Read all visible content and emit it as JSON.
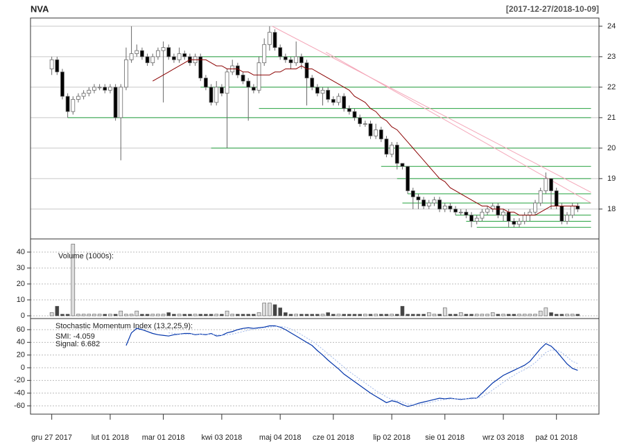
{
  "chart_data": [
    {
      "type": "candlestick",
      "title": "NVA",
      "subtitle": "[2017-12-27/2018-10-09]",
      "ylim": [
        17.02,
        24.27
      ],
      "yticks": [
        18,
        19,
        20,
        21,
        22,
        23,
        24
      ],
      "grid": true,
      "up_color": "#ffffff",
      "down_color": "#000000",
      "border_color": "#666666",
      "open": [
        22.6,
        22.9,
        22.5,
        21.7,
        21.2,
        21.6,
        21.7,
        21.8,
        21.9,
        22.0,
        22.0,
        21.9,
        22.0,
        21.0,
        22.0,
        22.9,
        23.1,
        23.2,
        23.0,
        22.8,
        23.0,
        23.2,
        23.3,
        23.0,
        22.9,
        23.1,
        23.0,
        22.8,
        23.0,
        22.3,
        22.0,
        21.5,
        22.0,
        21.8,
        22.5,
        22.7,
        22.4,
        22.2,
        22.0,
        21.9,
        22.8,
        23.4,
        23.8,
        23.3,
        23.0,
        22.9,
        22.8,
        23.0,
        22.8,
        22.3,
        22.0,
        21.8,
        21.9,
        21.6,
        21.5,
        21.7,
        21.3,
        21.2,
        21.0,
        20.8,
        20.8,
        20.4,
        20.6,
        20.3,
        19.8,
        20.1,
        19.5,
        19.4,
        18.6,
        18.4,
        18.3,
        18.1,
        18.2,
        18.3,
        18.0,
        18.1,
        18.0,
        17.9,
        17.9,
        17.8,
        17.6,
        17.7,
        17.9,
        18.0,
        18.1,
        17.8,
        17.9,
        17.6,
        17.5,
        17.6,
        17.8,
        17.9,
        18.2,
        18.6,
        19.0,
        18.6,
        18.1,
        17.6,
        17.8,
        18.1
      ],
      "high": [
        23.0,
        23.0,
        22.6,
        21.8,
        21.7,
        21.8,
        21.9,
        22.0,
        22.1,
        22.1,
        22.1,
        22.1,
        22.1,
        22.1,
        23.3,
        24.0,
        23.4,
        23.3,
        23.1,
        23.1,
        23.3,
        23.5,
        23.4,
        23.1,
        23.3,
        23.2,
        23.1,
        23.1,
        23.1,
        22.4,
        22.1,
        22.2,
        22.1,
        22.6,
        22.9,
        22.8,
        22.5,
        22.3,
        22.1,
        23.0,
        23.6,
        24.0,
        23.9,
        23.4,
        23.1,
        23.0,
        23.5,
        23.1,
        22.9,
        22.4,
        22.1,
        22.0,
        22.0,
        21.7,
        21.8,
        21.8,
        21.4,
        21.3,
        21.1,
        20.9,
        20.9,
        20.8,
        20.7,
        20.4,
        20.2,
        20.2,
        19.5,
        19.4,
        18.7,
        18.5,
        18.4,
        18.3,
        18.4,
        18.4,
        18.2,
        18.2,
        18.1,
        18.0,
        18.0,
        17.9,
        17.8,
        18.0,
        18.1,
        18.2,
        18.2,
        18.0,
        18.0,
        17.7,
        17.7,
        17.9,
        18.0,
        18.3,
        18.7,
        19.2,
        19.0,
        18.7,
        18.2,
        17.9,
        18.2,
        18.2
      ],
      "low": [
        22.4,
        22.4,
        21.6,
        21.0,
        21.1,
        21.5,
        21.6,
        21.7,
        21.8,
        21.9,
        21.8,
        21.8,
        20.9,
        19.6,
        21.9,
        22.8,
        23.0,
        22.9,
        22.7,
        22.7,
        22.9,
        21.5,
        22.9,
        22.8,
        22.8,
        22.9,
        22.7,
        22.7,
        22.2,
        21.9,
        21.4,
        21.4,
        21.7,
        20.0,
        22.4,
        22.3,
        22.1,
        20.9,
        21.8,
        21.8,
        22.7,
        23.2,
        23.2,
        22.9,
        22.8,
        22.6,
        22.7,
        22.6,
        21.4,
        21.9,
        21.7,
        21.4,
        21.5,
        21.4,
        21.4,
        21.2,
        21.1,
        20.9,
        20.7,
        20.7,
        20.3,
        20.3,
        20.2,
        19.7,
        19.7,
        19.3,
        19.3,
        18.5,
        18.0,
        18.0,
        18.0,
        18.0,
        18.1,
        17.9,
        17.9,
        17.9,
        17.8,
        17.8,
        17.7,
        17.4,
        17.5,
        17.6,
        17.8,
        17.9,
        17.7,
        17.6,
        17.4,
        17.4,
        17.4,
        17.5,
        17.6,
        17.8,
        18.1,
        18.5,
        18.0,
        18.0,
        17.5,
        17.5,
        17.7,
        17.9
      ],
      "close": [
        22.9,
        22.5,
        21.7,
        21.2,
        21.6,
        21.7,
        21.8,
        21.9,
        22.0,
        22.0,
        21.9,
        22.0,
        21.0,
        22.0,
        22.9,
        23.1,
        23.2,
        23.0,
        22.8,
        23.0,
        23.2,
        23.3,
        23.0,
        22.9,
        23.1,
        23.0,
        22.8,
        23.0,
        22.3,
        22.0,
        21.5,
        22.0,
        21.8,
        22.5,
        22.7,
        22.4,
        22.2,
        22.0,
        21.9,
        22.8,
        23.4,
        23.8,
        23.3,
        23.0,
        22.9,
        22.8,
        23.0,
        22.8,
        22.3,
        22.0,
        21.8,
        21.9,
        21.6,
        21.5,
        21.7,
        21.3,
        21.2,
        21.0,
        20.8,
        20.8,
        20.4,
        20.6,
        20.3,
        19.8,
        20.1,
        19.5,
        19.4,
        18.6,
        18.4,
        18.3,
        18.1,
        18.2,
        18.3,
        18.0,
        18.1,
        18.0,
        17.9,
        17.9,
        17.8,
        17.6,
        17.7,
        17.9,
        18.0,
        18.1,
        17.8,
        17.9,
        17.6,
        17.5,
        17.6,
        17.8,
        17.9,
        18.2,
        18.6,
        19.0,
        18.6,
        18.1,
        17.6,
        17.8,
        18.1,
        18.0
      ],
      "sma": {
        "color": "#8b0000",
        "values": [
          null,
          null,
          null,
          null,
          null,
          null,
          null,
          null,
          null,
          null,
          null,
          null,
          null,
          null,
          null,
          null,
          null,
          null,
          null,
          22.2,
          22.3,
          22.4,
          22.5,
          22.6,
          22.7,
          22.8,
          22.9,
          22.9,
          22.9,
          22.9,
          22.8,
          22.7,
          22.7,
          22.6,
          22.6,
          22.6,
          22.5,
          22.5,
          22.4,
          22.4,
          22.4,
          22.4,
          22.5,
          22.5,
          22.6,
          22.6,
          22.6,
          22.7,
          22.6,
          22.6,
          22.5,
          22.4,
          22.3,
          22.2,
          22.1,
          22.0,
          21.9,
          21.7,
          21.6,
          21.5,
          21.3,
          21.2,
          21.0,
          20.9,
          20.7,
          20.6,
          20.4,
          20.2,
          20.0,
          19.8,
          19.6,
          19.4,
          19.2,
          19.0,
          18.9,
          18.7,
          18.6,
          18.5,
          18.4,
          18.3,
          18.2,
          18.1,
          18.1,
          18.0,
          18.0,
          18.0,
          17.9,
          17.9,
          17.8,
          17.8,
          17.8,
          17.8,
          17.9,
          18.0,
          18.1,
          18.1,
          18.1,
          18.1,
          18.1,
          18.1
        ]
      },
      "hline_color": "#22a03c",
      "hlines": [
        {
          "value": 23.0,
          "from": 28,
          "to": 101.5
        },
        {
          "value": 22.0,
          "from": 28,
          "to": 101.5
        },
        {
          "value": 21.3,
          "from": 39,
          "to": 101.5
        },
        {
          "value": 21.0,
          "from": 3,
          "to": 101.5
        },
        {
          "value": 20.0,
          "from": 30,
          "to": 101.5
        },
        {
          "value": 19.4,
          "from": 62,
          "to": 101.5
        },
        {
          "value": 19.0,
          "from": 65,
          "to": 101.5
        },
        {
          "value": 18.5,
          "from": 67,
          "to": 101.5
        },
        {
          "value": 18.2,
          "from": 66,
          "to": 101.5
        },
        {
          "value": 17.8,
          "from": 76,
          "to": 101.5
        },
        {
          "value": 17.6,
          "from": 78,
          "to": 101.5
        },
        {
          "value": 17.4,
          "from": 80,
          "to": 101.5
        }
      ],
      "trend_color": "#f4a6b8",
      "trendlines": [
        {
          "x": [
            41.5,
            101.5
          ],
          "y": [
            24.0,
            18.55
          ]
        },
        {
          "x": [
            51.6,
            101.5
          ],
          "y": [
            23.15,
            18.2
          ]
        }
      ]
    },
    {
      "type": "volume",
      "title": "Volume (1000s):",
      "ylim": [
        -1.74,
        48.26
      ],
      "yticks": [
        0,
        10,
        20,
        30,
        40
      ],
      "grid": true,
      "values": [
        2,
        6,
        1,
        1,
        45,
        1,
        1,
        1,
        1,
        1,
        1,
        1,
        1,
        3,
        1,
        1,
        3,
        1,
        1,
        1,
        1,
        1,
        2,
        1,
        1,
        1,
        1,
        1,
        1,
        1,
        1,
        1,
        1,
        3,
        1,
        1,
        1,
        1,
        1,
        2,
        8,
        8,
        7,
        5,
        2,
        1,
        1,
        1,
        1,
        1,
        1,
        1,
        2,
        1,
        1,
        1,
        1,
        1,
        1,
        1,
        1,
        1,
        1,
        1,
        1,
        1,
        6,
        1,
        1,
        1,
        1,
        2,
        1,
        1,
        5,
        1,
        1,
        2,
        1,
        1,
        1,
        1,
        1,
        2,
        1,
        1,
        1,
        1,
        1,
        1,
        1,
        1,
        3,
        5,
        2,
        1,
        1,
        1,
        1,
        1
      ]
    },
    {
      "type": "line",
      "title": "Stochastic Momentum Index (13,2,25,9):",
      "ylim": [
        -73.1,
        77.45
      ],
      "yticks": [
        -60,
        -40,
        -20,
        0,
        20,
        40,
        60
      ],
      "grid": true,
      "xlim": [
        -4,
        103
      ],
      "xticks": [
        {
          "value": 0,
          "label": "gru 27 2017"
        },
        {
          "value": 11,
          "label": "lut 01 2018"
        },
        {
          "value": 21,
          "label": "mar 01 2018"
        },
        {
          "value": 32,
          "label": "kwi 03 2018"
        },
        {
          "value": 43,
          "label": "maj 04 2018"
        },
        {
          "value": 53,
          "label": "cze 01 2018"
        },
        {
          "value": 64,
          "label": "lip 02 2018"
        },
        {
          "value": 74,
          "label": "sie 01 2018"
        },
        {
          "value": 85,
          "label": "wrz 03 2018"
        },
        {
          "value": 95,
          "label": "paź 01 2018"
        }
      ],
      "series": [
        {
          "name": "SMI: -4.059",
          "color": "#0033aa",
          "values": [
            null,
            null,
            null,
            null,
            null,
            null,
            null,
            null,
            null,
            null,
            null,
            null,
            null,
            null,
            35,
            55,
            62,
            60,
            57,
            54,
            52,
            51,
            50,
            52,
            53,
            54,
            54,
            52,
            53,
            52,
            54,
            50,
            51,
            55,
            57,
            60,
            62,
            63,
            62,
            63,
            64,
            66,
            66,
            64,
            60,
            55,
            50,
            45,
            40,
            35,
            27,
            20,
            12,
            5,
            -2,
            -10,
            -16,
            -22,
            -28,
            -34,
            -40,
            -45,
            -50,
            -55,
            -52,
            -54,
            -58,
            -61,
            -59,
            -56,
            -54,
            -52,
            -50,
            -48,
            -49,
            -48,
            -49,
            -50,
            -49,
            -48,
            -48,
            -40,
            -32,
            -24,
            -18,
            -12,
            -8,
            -4,
            0,
            4,
            10,
            20,
            30,
            38,
            34,
            26,
            16,
            6,
            -1,
            -4.059
          ]
        },
        {
          "name": "Signal: 6.682",
          "color": "#9fb7e8",
          "values": [
            null,
            null,
            null,
            null,
            null,
            null,
            null,
            null,
            null,
            null,
            null,
            null,
            null,
            null,
            null,
            null,
            null,
            null,
            null,
            null,
            null,
            null,
            55,
            54,
            53,
            53,
            53,
            53,
            53,
            53,
            53,
            52,
            51,
            52,
            53,
            55,
            57,
            59,
            61,
            62,
            63,
            64,
            65,
            65,
            64,
            61,
            57,
            52,
            47,
            42,
            36,
            29,
            22,
            15,
            8,
            1,
            -6,
            -12,
            -18,
            -24,
            -30,
            -36,
            -41,
            -46,
            -50,
            -52,
            -54,
            -57,
            -58,
            -58,
            -57,
            -55,
            -53,
            -51,
            -50,
            -49,
            -49,
            -49,
            -49,
            -49,
            -48,
            -46,
            -41,
            -35,
            -29,
            -23,
            -17,
            -12,
            -7,
            -3,
            2,
            8,
            16,
            24,
            28,
            28,
            24,
            17,
            10,
            6.682
          ]
        }
      ]
    }
  ]
}
